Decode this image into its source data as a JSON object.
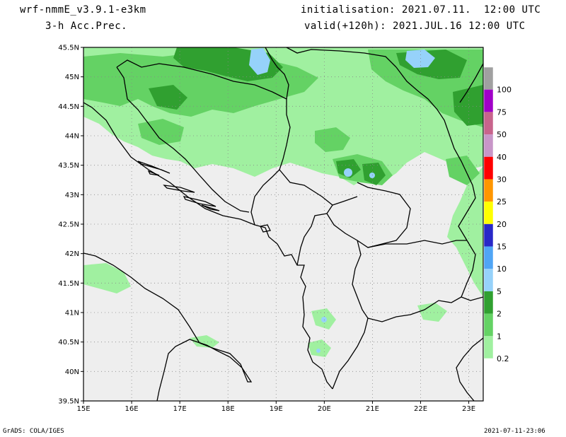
{
  "header": {
    "model": "wrf-nmmE_v3.9.1-e3km",
    "field": "3-h Acc.Prec.",
    "initialisation": "initialisation: 2021.07.11.  12:00 UTC",
    "valid": "valid(+120h): 2021.JUL.16 12:00 UTC"
  },
  "footer": {
    "software": "GrADS: COLA/IGES",
    "timestamp": "2021-07-11-23:06"
  },
  "map": {
    "lon_labels": [
      "15E",
      "16E",
      "17E",
      "18E",
      "19E",
      "20E",
      "21E",
      "22E",
      "23E"
    ],
    "lat_labels": [
      "45.5N",
      "45N",
      "44.5N",
      "44N",
      "43.5N",
      "43N",
      "42.5N",
      "42N",
      "41.5N",
      "41N",
      "40.5N",
      "40N",
      "39.5N"
    ],
    "lon_range": [
      15,
      23.3
    ],
    "lat_range": [
      39.5,
      45.5
    ],
    "colors": {
      "background": "#eeeeee",
      "light_green": "#a0f0a0",
      "mid_green": "#64d264",
      "dark_green": "#30a030",
      "light_blue": "#96d2fa",
      "blue": "#50a5f5"
    }
  },
  "legend": {
    "labels": [
      "100",
      "75",
      "50",
      "40",
      "30",
      "25",
      "20",
      "15",
      "10",
      "5",
      "2",
      "1",
      "0.2"
    ],
    "colors": [
      "#a0a0a0",
      "#a000c8",
      "#c8648c",
      "#c896c8",
      "#ff0000",
      "#ff9600",
      "#ffff00",
      "#2828c8",
      "#50a5f5",
      "#96d2fa",
      "#30a030",
      "#64d264",
      "#a0f0a0"
    ]
  }
}
